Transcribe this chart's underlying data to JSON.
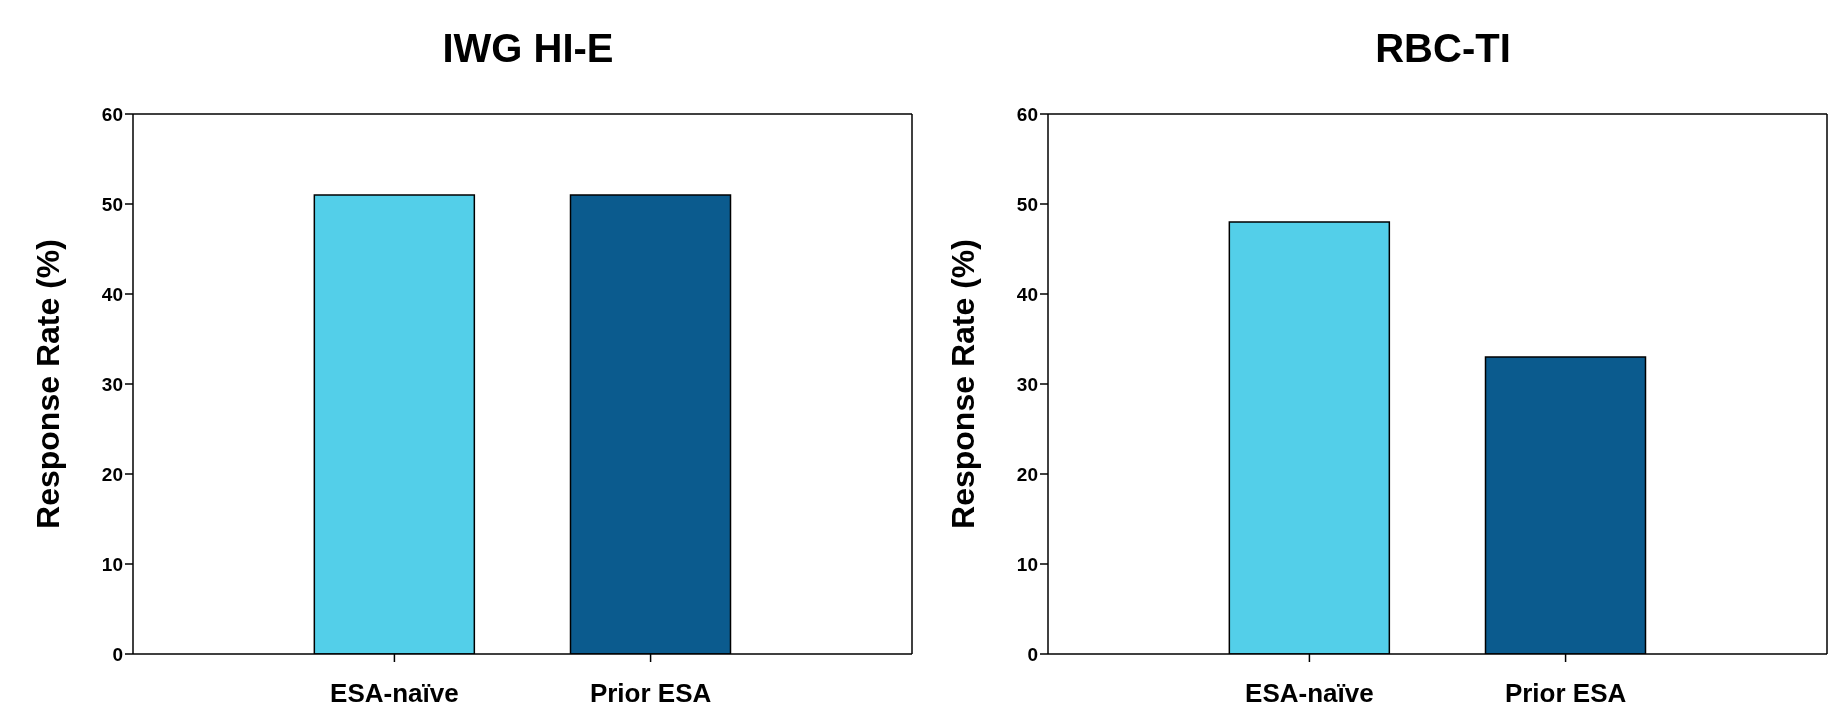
{
  "chart_data": [
    {
      "type": "bar",
      "title": "IWG HI-E",
      "ylabel": "Response Rate (%)",
      "categories": [
        "ESA-naïve",
        "Prior ESA"
      ],
      "values": [
        51,
        51
      ],
      "colors": [
        "#53cfe9",
        "#0b5b8e"
      ],
      "ylim": [
        0,
        60
      ],
      "yticks": [
        0,
        10,
        20,
        30,
        40,
        50,
        60
      ]
    },
    {
      "type": "bar",
      "title": "RBC-TI",
      "ylabel": "Response Rate (%)",
      "categories": [
        "ESA-naïve",
        "Prior ESA"
      ],
      "values": [
        48,
        33
      ],
      "colors": [
        "#53cfe9",
        "#0b5b8e"
      ],
      "ylim": [
        0,
        60
      ],
      "yticks": [
        0,
        10,
        20,
        30,
        40,
        50,
        60
      ]
    }
  ]
}
